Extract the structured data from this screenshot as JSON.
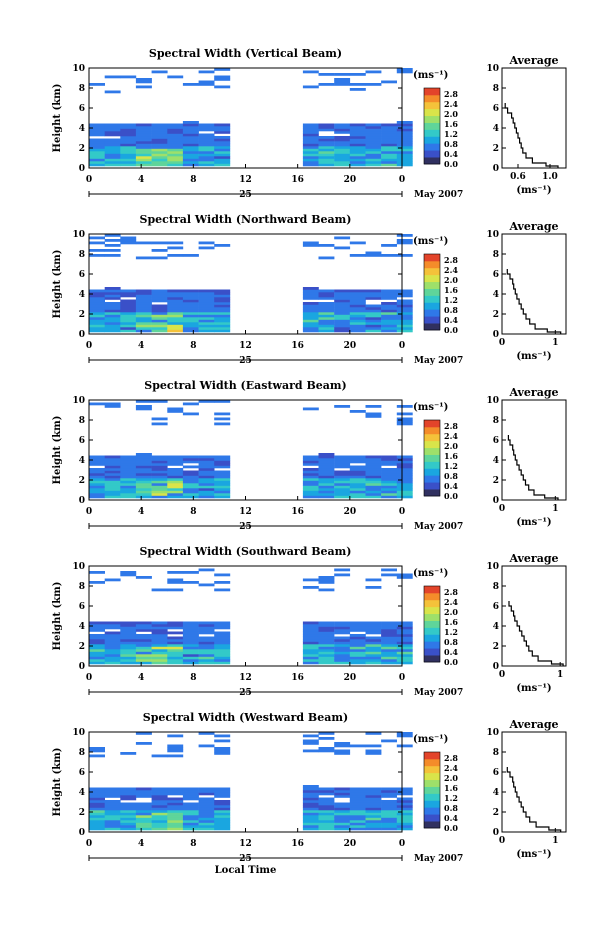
{
  "colorbar": {
    "unit": "(ms⁻¹)",
    "ticks": [
      "2.8",
      "2.4",
      "2.0",
      "1.6",
      "1.2",
      "0.8",
      "0.4",
      "0.0"
    ],
    "colors": [
      "#303060",
      "#3a50c8",
      "#2f78e8",
      "#1aa6e0",
      "#33c9c8",
      "#5fd59a",
      "#9ee06a",
      "#d9e44a",
      "#f4c23a",
      "#f48c2a",
      "#e3442a"
    ]
  },
  "chart_data": [
    {
      "type": "heatmap",
      "title": "Spectral Width (Vertical Beam)",
      "ylabel": "Height (km)",
      "xlabel": "",
      "date_label": "May 2007",
      "day_label": "25",
      "x_ticks": [
        "0",
        "4",
        "8",
        "12",
        "16",
        "20",
        "0"
      ],
      "y_ticks": [
        "0",
        "2",
        "4",
        "6",
        "8",
        "10"
      ],
      "xlim": [
        0,
        24
      ],
      "ylim": [
        0,
        10
      ],
      "data_intervals_hours": [
        [
          0,
          10
        ],
        [
          16.4,
          24
        ]
      ],
      "lower_layer_top_km": 4.5,
      "upper_patches_km": [
        7.5,
        10
      ],
      "average": {
        "title": "Average",
        "xlabel": "(ms⁻¹)",
        "x_ticks": [
          "0.6",
          "1.0"
        ],
        "x_tick_values": [
          0.6,
          1.0
        ],
        "xlim": [
          0.4,
          1.2
        ],
        "y_ticks": [
          "0",
          "2",
          "4",
          "6",
          "8",
          "10"
        ],
        "height_km": [
          0.2,
          0.5,
          1.0,
          1.5,
          2.0,
          2.5,
          3.0,
          3.5,
          4.0,
          4.5,
          5.0,
          5.5,
          6.0,
          6.5
        ],
        "width": [
          1.1,
          0.95,
          0.78,
          0.7,
          0.66,
          0.64,
          0.62,
          0.6,
          0.58,
          0.56,
          0.54,
          0.52,
          0.47,
          0.44
        ]
      }
    },
    {
      "type": "heatmap",
      "title": "Spectral Width (Northward Beam)",
      "ylabel": "Height (km)",
      "xlabel": "",
      "date_label": "May 2007",
      "day_label": "25",
      "x_ticks": [
        "0",
        "4",
        "8",
        "12",
        "16",
        "20",
        "0"
      ],
      "y_ticks": [
        "0",
        "2",
        "4",
        "6",
        "8",
        "10"
      ],
      "xlim": [
        0,
        24
      ],
      "ylim": [
        0,
        10
      ],
      "data_intervals_hours": [
        [
          0,
          10
        ],
        [
          16.4,
          24
        ]
      ],
      "lower_layer_top_km": 4.5,
      "upper_patches_km": [
        7.5,
        10
      ],
      "average": {
        "title": "Average",
        "xlabel": "(ms⁻¹)",
        "x_ticks": [
          "0",
          "1"
        ],
        "x_tick_values": [
          0,
          1
        ],
        "xlim": [
          0,
          1.2
        ],
        "y_ticks": [
          "0",
          "2",
          "4",
          "6",
          "8",
          "10"
        ],
        "height_km": [
          0.2,
          0.5,
          1.0,
          1.5,
          2.0,
          2.5,
          3.0,
          3.5,
          4.0,
          4.5,
          5.0,
          5.5,
          6.0,
          6.5
        ],
        "width": [
          1.1,
          0.85,
          0.62,
          0.52,
          0.45,
          0.4,
          0.36,
          0.32,
          0.28,
          0.25,
          0.22,
          0.2,
          0.15,
          0.1
        ]
      }
    },
    {
      "type": "heatmap",
      "title": "Spectral Width (Eastward Beam)",
      "ylabel": "Height (km)",
      "xlabel": "",
      "date_label": "May 2007",
      "day_label": "25",
      "x_ticks": [
        "0",
        "4",
        "8",
        "12",
        "16",
        "20",
        "0"
      ],
      "y_ticks": [
        "0",
        "2",
        "4",
        "6",
        "8",
        "10"
      ],
      "xlim": [
        0,
        24
      ],
      "ylim": [
        0,
        10
      ],
      "data_intervals_hours": [
        [
          0,
          10
        ],
        [
          16.4,
          24
        ]
      ],
      "lower_layer_top_km": 4.5,
      "upper_patches_km": [
        7.5,
        10
      ],
      "average": {
        "title": "Average",
        "xlabel": "(ms⁻¹)",
        "x_ticks": [
          "0",
          "1"
        ],
        "x_tick_values": [
          0,
          1
        ],
        "xlim": [
          0,
          1.2
        ],
        "y_ticks": [
          "0",
          "2",
          "4",
          "6",
          "8",
          "10"
        ],
        "height_km": [
          0.2,
          0.5,
          1.0,
          1.5,
          2.0,
          2.5,
          3.0,
          3.5,
          4.0,
          4.5,
          5.0,
          5.5,
          6.0,
          6.5
        ],
        "width": [
          1.05,
          0.8,
          0.6,
          0.5,
          0.44,
          0.4,
          0.36,
          0.32,
          0.28,
          0.25,
          0.22,
          0.2,
          0.15,
          0.12
        ]
      }
    },
    {
      "type": "heatmap",
      "title": "Spectral Width (Southward Beam)",
      "ylabel": "Height (km)",
      "xlabel": "",
      "date_label": "May 2007",
      "day_label": "25",
      "x_ticks": [
        "0",
        "4",
        "8",
        "12",
        "16",
        "20",
        "0"
      ],
      "y_ticks": [
        "0",
        "2",
        "4",
        "6",
        "8",
        "10"
      ],
      "xlim": [
        0,
        24
      ],
      "ylim": [
        0,
        10
      ],
      "data_intervals_hours": [
        [
          0,
          10
        ],
        [
          16.4,
          24
        ]
      ],
      "lower_layer_top_km": 4.5,
      "upper_patches_km": [
        7.5,
        10
      ],
      "average": {
        "title": "Average",
        "xlabel": "(ms⁻¹)",
        "x_ticks": [
          "0",
          "1"
        ],
        "x_tick_values": [
          0,
          1
        ],
        "xlim": [
          0,
          1.1
        ],
        "y_ticks": [
          "0",
          "2",
          "4",
          "6",
          "8",
          "10"
        ],
        "height_km": [
          0.2,
          0.5,
          1.0,
          1.5,
          2.0,
          2.5,
          3.0,
          3.5,
          4.0,
          4.5,
          5.0,
          5.5,
          6.0,
          6.5
        ],
        "width": [
          1.05,
          0.85,
          0.62,
          0.52,
          0.46,
          0.42,
          0.38,
          0.34,
          0.3,
          0.26,
          0.22,
          0.2,
          0.16,
          0.12
        ]
      }
    },
    {
      "type": "heatmap",
      "title": "Spectral Width (Westward Beam)",
      "ylabel": "Height (km)",
      "xlabel": "Local Time",
      "date_label": "May 2007",
      "day_label": "25",
      "x_ticks": [
        "0",
        "4",
        "8",
        "12",
        "16",
        "20",
        "0"
      ],
      "y_ticks": [
        "0",
        "2",
        "4",
        "6",
        "8",
        "10"
      ],
      "xlim": [
        0,
        24
      ],
      "ylim": [
        0,
        10
      ],
      "data_intervals_hours": [
        [
          0,
          10
        ],
        [
          16.4,
          24
        ]
      ],
      "lower_layer_top_km": 4.5,
      "upper_patches_km": [
        7.5,
        10
      ],
      "average": {
        "title": "Average",
        "xlabel": "(ms⁻¹)",
        "x_ticks": [
          "0",
          "1"
        ],
        "x_tick_values": [
          0,
          1
        ],
        "xlim": [
          0,
          1.2
        ],
        "y_ticks": [
          "0",
          "2",
          "4",
          "6",
          "8",
          "10"
        ],
        "height_km": [
          0.2,
          0.5,
          1.0,
          1.5,
          2.0,
          2.5,
          3.0,
          3.5,
          4.0,
          4.5,
          5.0,
          5.5,
          6.0,
          6.5
        ],
        "width": [
          1.1,
          0.88,
          0.64,
          0.52,
          0.45,
          0.4,
          0.36,
          0.32,
          0.28,
          0.25,
          0.22,
          0.2,
          0.15,
          0.1
        ]
      }
    }
  ]
}
